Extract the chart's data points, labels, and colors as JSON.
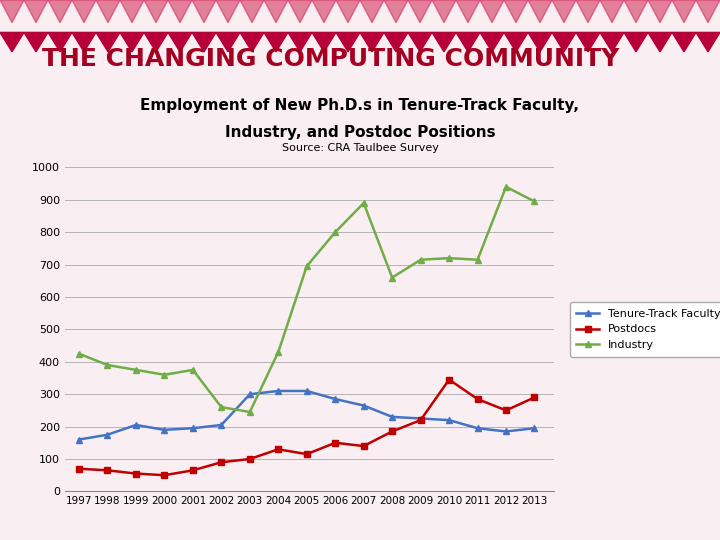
{
  "years": [
    1997,
    1998,
    1999,
    2000,
    2001,
    2002,
    2003,
    2004,
    2005,
    2006,
    2007,
    2008,
    2009,
    2010,
    2011,
    2012,
    2013
  ],
  "tenure_track": [
    160,
    175,
    205,
    190,
    195,
    205,
    300,
    310,
    310,
    285,
    265,
    230,
    225,
    220,
    195,
    185,
    195
  ],
  "postdocs": [
    70,
    65,
    55,
    50,
    65,
    90,
    100,
    130,
    115,
    150,
    140,
    185,
    220,
    345,
    285,
    250,
    290
  ],
  "industry": [
    425,
    390,
    375,
    360,
    375,
    260,
    245,
    430,
    695,
    800,
    890,
    660,
    715,
    720,
    715,
    940,
    895
  ],
  "title": "THE CHANGING COMPUTING COMMUNITY",
  "subtitle1": "Employment of New Ph.D.s in Tenure-Track Faculty,",
  "subtitle2": "Industry, and Postdoc Positions",
  "source": "Source: CRA Taulbee Survey",
  "tenure_color": "#4472C4",
  "postdoc_color": "#C00000",
  "industry_color": "#70AD47",
  "bg_color": "#f9eef1",
  "title_color": "#A50021",
  "ylim": [
    0,
    1000
  ],
  "yticks": [
    0,
    100,
    200,
    300,
    400,
    500,
    600,
    700,
    800,
    900,
    1000
  ],
  "legend_labels": [
    "Tenure-Track Faculty",
    "Postdocs",
    "Industry"
  ]
}
